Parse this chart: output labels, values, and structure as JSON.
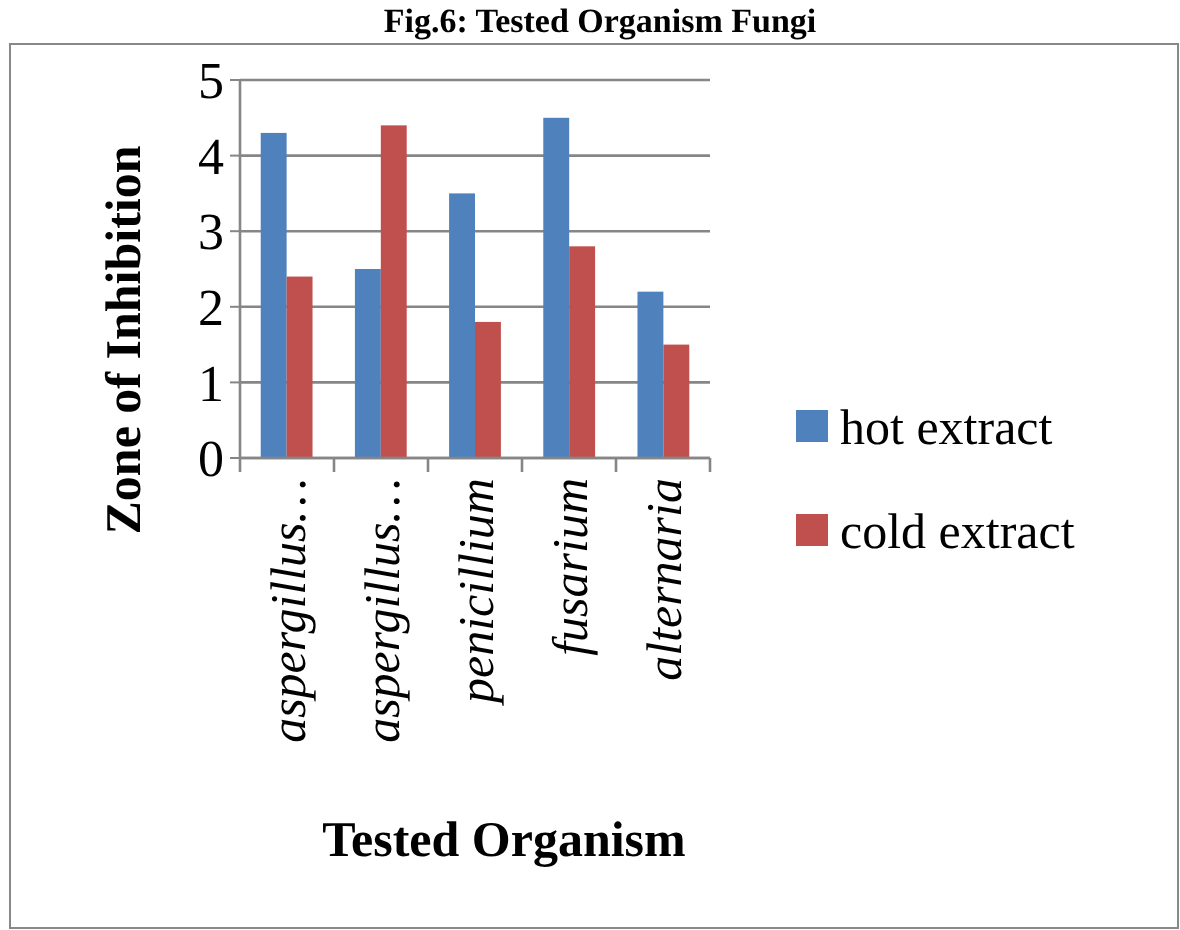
{
  "chart_data": {
    "type": "bar",
    "title": "Fig.6: Tested Organism Fungi",
    "xlabel": "Tested Organism",
    "ylabel": "Zone of Inhibition",
    "categories": [
      "aspergillus…",
      "aspergillus…",
      "penicillium",
      "fusarium",
      "alternaria"
    ],
    "series": [
      {
        "name": "hot extract",
        "color": "#4f81bd",
        "values": [
          4.3,
          2.5,
          3.5,
          4.5,
          2.2
        ]
      },
      {
        "name": "cold extract",
        "color": "#c0504d",
        "values": [
          2.4,
          4.4,
          1.8,
          2.8,
          1.5
        ]
      }
    ],
    "ylim": [
      0,
      5
    ],
    "yticks": [
      0,
      1,
      2,
      3,
      4,
      5
    ],
    "grid": "y",
    "legend": "right"
  }
}
